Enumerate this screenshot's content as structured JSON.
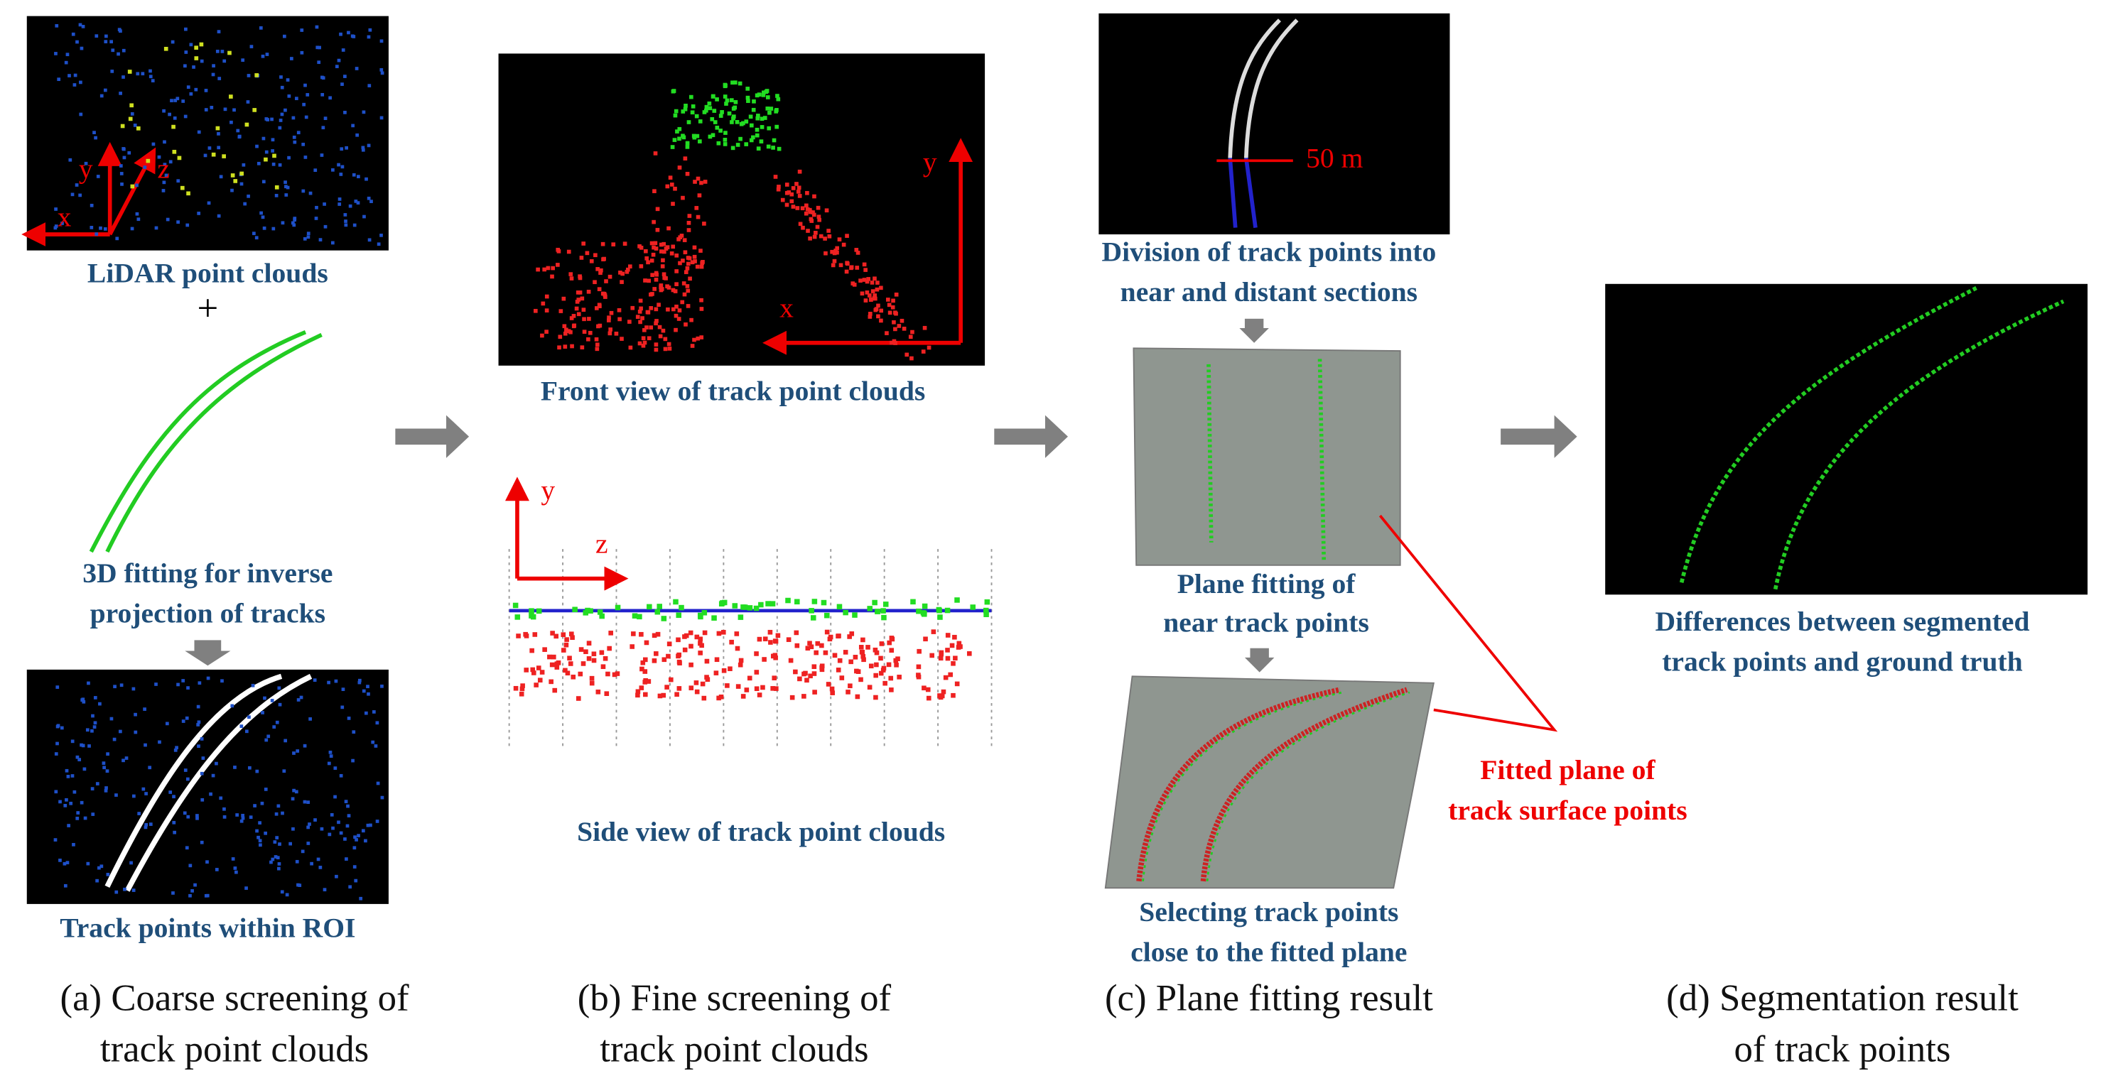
{
  "panels": [
    {
      "caption": [
        "(a) Coarse screening of",
        "track point clouds"
      ],
      "axes": [
        "x",
        "y",
        "z"
      ],
      "labels": [
        "LiDAR point clouds",
        "+",
        "3D fitting for inverse",
        "projection of tracks",
        "Track points within ROI"
      ]
    },
    {
      "caption": [
        "(b) Fine screening of",
        "track point clouds"
      ],
      "front_axes": [
        "y",
        "x"
      ],
      "side_axes": [
        "y",
        "z"
      ],
      "labels": [
        "Front view of track point clouds",
        "Side view of track point clouds"
      ]
    },
    {
      "caption": [
        "(c) Plane fitting result"
      ],
      "scale": "50 m",
      "labels": [
        "Division of track points into",
        "near and distant sections",
        "Plane fitting of",
        "near track points",
        "Selecting track points",
        "close to the fitted plane"
      ],
      "note": [
        "Fitted plane of",
        "track surface points"
      ]
    },
    {
      "caption": [
        "(d) Segmentation result",
        "of track points"
      ],
      "labels": [
        "Differences between segmented",
        "track points and ground truth"
      ]
    }
  ]
}
